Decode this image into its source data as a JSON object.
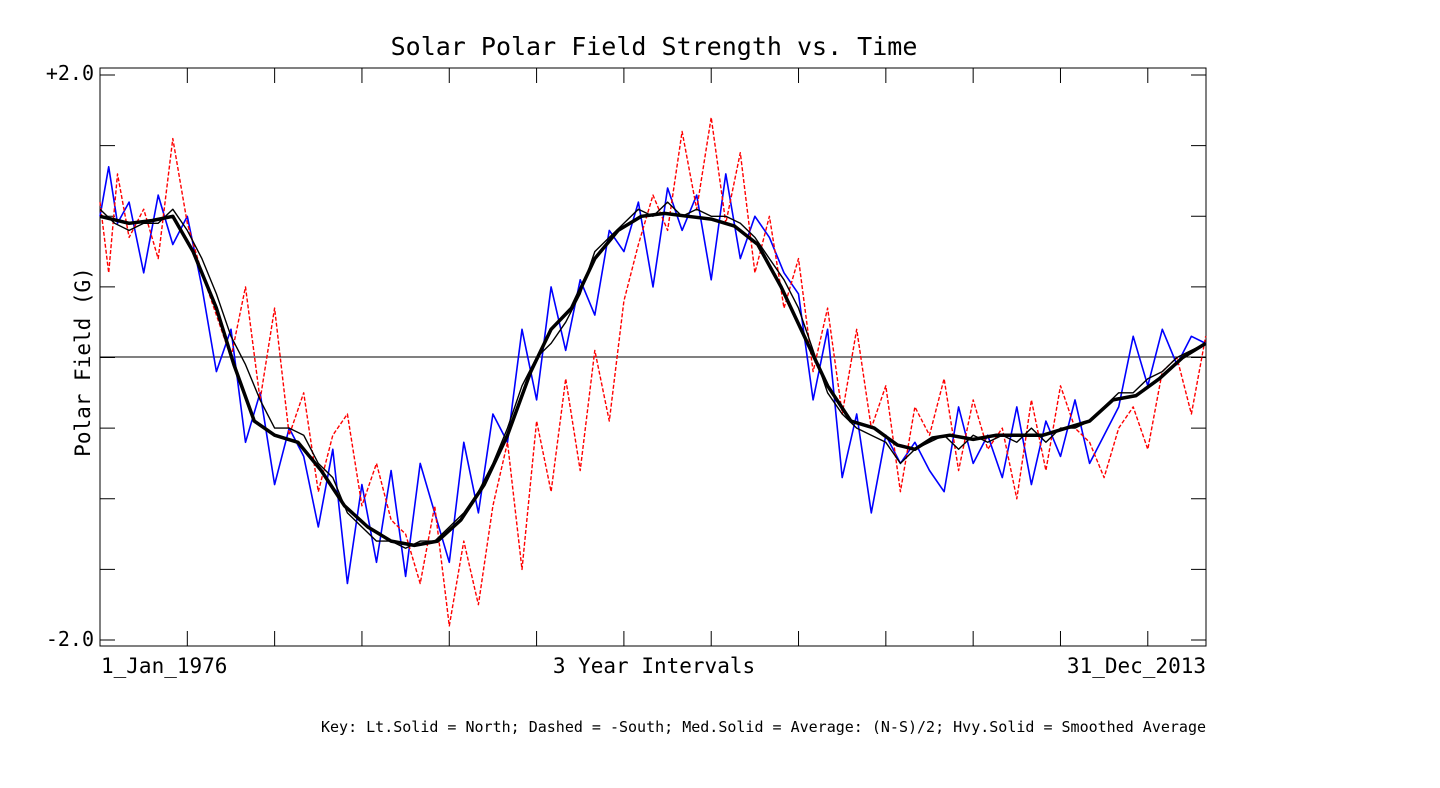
{
  "chart_data": {
    "type": "line",
    "title": "Solar Polar Field Strength vs. Time",
    "ylabel": "Polar Field (G)",
    "xlabel": "3 Year Intervals",
    "x_start_label": "1_Jan_1976",
    "x_end_label": "31_Dec_2013",
    "x_range": [
      "1976-01-01",
      "2013-12-31"
    ],
    "ylim": [
      -2.0,
      2.0
    ],
    "y_tick_labels": [
      "+2.0",
      "-2.0"
    ],
    "zero_line": true,
    "grid": false,
    "key": "Key: Lt.Solid = North; Dashed = -South; Med.Solid = Average: (N-S)/2; Hvy.Solid = Smoothed Average",
    "series": [
      {
        "name": "North",
        "style": "light-solid",
        "color": "#0000ff",
        "x": [
          1976.0,
          1976.3,
          1976.6,
          1977.0,
          1977.5,
          1978.0,
          1978.5,
          1979.0,
          1979.5,
          1980.0,
          1980.5,
          1981.0,
          1981.5,
          1982.0,
          1982.5,
          1983.0,
          1983.5,
          1984.0,
          1984.5,
          1985.0,
          1985.5,
          1986.0,
          1986.5,
          1987.0,
          1987.5,
          1988.0,
          1988.5,
          1989.0,
          1989.5,
          1990.0,
          1990.5,
          1991.0,
          1991.5,
          1992.0,
          1992.5,
          1993.0,
          1993.5,
          1994.0,
          1994.5,
          1995.0,
          1995.5,
          1996.0,
          1996.5,
          1997.0,
          1997.5,
          1998.0,
          1998.5,
          1999.0,
          1999.5,
          2000.0,
          2000.5,
          2001.0,
          2001.5,
          2002.0,
          2002.5,
          2003.0,
          2003.5,
          2004.0,
          2004.5,
          2005.0,
          2005.5,
          2006.0,
          2006.5,
          2007.0,
          2007.5,
          2008.0,
          2008.5,
          2009.0,
          2009.5,
          2010.0,
          2010.5,
          2011.0,
          2011.5,
          2012.0,
          2012.5,
          2013.0,
          2013.5,
          2013.99
        ],
        "y": [
          1.0,
          1.35,
          0.95,
          1.1,
          0.6,
          1.15,
          0.8,
          1.0,
          0.5,
          -0.1,
          0.2,
          -0.6,
          -0.25,
          -0.9,
          -0.5,
          -0.7,
          -1.2,
          -0.65,
          -1.6,
          -0.9,
          -1.45,
          -0.8,
          -1.55,
          -0.75,
          -1.1,
          -1.45,
          -0.6,
          -1.1,
          -0.4,
          -0.6,
          0.2,
          -0.3,
          0.5,
          0.05,
          0.55,
          0.3,
          0.9,
          0.75,
          1.1,
          0.5,
          1.2,
          0.9,
          1.15,
          0.55,
          1.3,
          0.7,
          1.0,
          0.85,
          0.6,
          0.45,
          -0.3,
          0.2,
          -0.85,
          -0.4,
          -1.1,
          -0.55,
          -0.75,
          -0.6,
          -0.8,
          -0.95,
          -0.35,
          -0.75,
          -0.55,
          -0.85,
          -0.35,
          -0.9,
          -0.45,
          -0.7,
          -0.3,
          -0.75,
          -0.55,
          -0.35,
          0.15,
          -0.2,
          0.2,
          -0.05,
          0.15,
          0.1
        ]
      },
      {
        "name": "-South",
        "style": "dashed",
        "color": "#ff0000",
        "x": [
          1976.0,
          1976.3,
          1976.6,
          1977.0,
          1977.5,
          1978.0,
          1978.5,
          1979.0,
          1979.5,
          1980.0,
          1980.5,
          1981.0,
          1981.5,
          1982.0,
          1982.5,
          1983.0,
          1983.5,
          1984.0,
          1984.5,
          1985.0,
          1985.5,
          1986.0,
          1986.5,
          1987.0,
          1987.5,
          1988.0,
          1988.5,
          1989.0,
          1989.5,
          1990.0,
          1990.5,
          1991.0,
          1991.5,
          1992.0,
          1992.5,
          1993.0,
          1993.5,
          1994.0,
          1994.5,
          1995.0,
          1995.5,
          1996.0,
          1996.5,
          1997.0,
          1997.5,
          1998.0,
          1998.5,
          1999.0,
          1999.5,
          2000.0,
          2000.5,
          2001.0,
          2001.5,
          2002.0,
          2002.5,
          2003.0,
          2003.5,
          2004.0,
          2004.5,
          2005.0,
          2005.5,
          2006.0,
          2006.5,
          2007.0,
          2007.5,
          2008.0,
          2008.5,
          2009.0,
          2009.5,
          2010.0,
          2010.5,
          2011.0,
          2011.5,
          2012.0,
          2012.5,
          2013.0,
          2013.5,
          2013.99
        ],
        "y": [
          1.1,
          0.6,
          1.3,
          0.85,
          1.05,
          0.7,
          1.55,
          0.95,
          0.6,
          0.3,
          0.0,
          0.5,
          -0.3,
          0.35,
          -0.55,
          -0.25,
          -0.95,
          -0.55,
          -0.4,
          -1.05,
          -0.75,
          -1.15,
          -1.25,
          -1.6,
          -1.05,
          -1.9,
          -1.3,
          -1.75,
          -1.05,
          -0.6,
          -1.5,
          -0.45,
          -0.95,
          -0.15,
          -0.8,
          0.05,
          -0.45,
          0.4,
          0.8,
          1.15,
          0.9,
          1.6,
          1.05,
          1.7,
          0.95,
          1.45,
          0.6,
          1.0,
          0.35,
          0.7,
          -0.1,
          0.35,
          -0.4,
          0.2,
          -0.5,
          -0.2,
          -0.95,
          -0.35,
          -0.55,
          -0.15,
          -0.8,
          -0.3,
          -0.65,
          -0.5,
          -1.0,
          -0.3,
          -0.8,
          -0.2,
          -0.5,
          -0.6,
          -0.85,
          -0.5,
          -0.35,
          -0.65,
          -0.1,
          0.0,
          -0.4,
          0.15
        ]
      },
      {
        "name": "Average: (N-S)/2",
        "style": "medium-solid",
        "color": "#000000",
        "x": [
          1976.0,
          1976.5,
          1977.0,
          1977.5,
          1978.0,
          1978.5,
          1979.0,
          1979.5,
          1980.0,
          1980.5,
          1981.0,
          1981.5,
          1982.0,
          1982.5,
          1983.0,
          1983.5,
          1984.0,
          1984.5,
          1985.0,
          1985.5,
          1986.0,
          1986.5,
          1987.0,
          1987.5,
          1988.0,
          1988.5,
          1989.0,
          1989.5,
          1990.0,
          1990.5,
          1991.0,
          1991.5,
          1992.0,
          1992.5,
          1993.0,
          1993.5,
          1994.0,
          1994.5,
          1995.0,
          1995.5,
          1996.0,
          1996.5,
          1997.0,
          1997.5,
          1998.0,
          1998.5,
          1999.0,
          1999.5,
          2000.0,
          2000.5,
          2001.0,
          2001.5,
          2002.0,
          2002.5,
          2003.0,
          2003.5,
          2004.0,
          2004.5,
          2005.0,
          2005.5,
          2006.0,
          2006.5,
          2007.0,
          2007.5,
          2008.0,
          2008.5,
          2009.0,
          2009.5,
          2010.0,
          2010.5,
          2011.0,
          2011.5,
          2012.0,
          2012.5,
          2013.0,
          2013.5,
          2013.99
        ],
        "y": [
          1.05,
          0.95,
          0.9,
          0.95,
          0.95,
          1.05,
          0.9,
          0.7,
          0.45,
          0.15,
          -0.05,
          -0.3,
          -0.5,
          -0.5,
          -0.55,
          -0.75,
          -0.85,
          -1.1,
          -1.2,
          -1.3,
          -1.3,
          -1.35,
          -1.3,
          -1.3,
          -1.2,
          -1.1,
          -0.95,
          -0.75,
          -0.5,
          -0.2,
          0.0,
          0.1,
          0.25,
          0.45,
          0.75,
          0.85,
          0.95,
          1.05,
          1.0,
          1.1,
          1.0,
          1.05,
          1.0,
          1.0,
          0.95,
          0.85,
          0.7,
          0.55,
          0.35,
          0.05,
          -0.25,
          -0.4,
          -0.5,
          -0.55,
          -0.6,
          -0.75,
          -0.65,
          -0.6,
          -0.55,
          -0.65,
          -0.55,
          -0.6,
          -0.55,
          -0.6,
          -0.5,
          -0.6,
          -0.5,
          -0.5,
          -0.45,
          -0.35,
          -0.25,
          -0.25,
          -0.15,
          -0.1,
          0.0,
          0.05,
          0.1
        ]
      },
      {
        "name": "Smoothed Average",
        "style": "heavy-solid",
        "color": "#000000",
        "x": [
          1976.0,
          1977.0,
          1977.8,
          1978.5,
          1979.2,
          1980.0,
          1980.6,
          1981.3,
          1982.0,
          1982.8,
          1983.6,
          1984.4,
          1985.2,
          1986.0,
          1986.8,
          1987.6,
          1988.4,
          1989.2,
          1990.0,
          1990.8,
          1991.5,
          1992.2,
          1993.0,
          1993.8,
          1994.6,
          1995.4,
          1996.2,
          1997.0,
          1997.8,
          1998.6,
          1999.4,
          2000.2,
          2001.0,
          2001.8,
          2002.6,
          2003.4,
          2004.0,
          2004.6,
          2005.2,
          2006.0,
          2006.8,
          2007.6,
          2008.4,
          2009.2,
          2010.0,
          2010.8,
          2011.6,
          2012.4,
          2013.2,
          2013.99
        ],
        "y": [
          1.0,
          0.95,
          0.97,
          1.0,
          0.75,
          0.35,
          -0.05,
          -0.45,
          -0.55,
          -0.6,
          -0.8,
          -1.05,
          -1.2,
          -1.3,
          -1.33,
          -1.3,
          -1.15,
          -0.9,
          -0.55,
          -0.1,
          0.2,
          0.35,
          0.7,
          0.9,
          1.0,
          1.02,
          1.0,
          0.98,
          0.93,
          0.8,
          0.5,
          0.15,
          -0.2,
          -0.45,
          -0.5,
          -0.62,
          -0.65,
          -0.57,
          -0.55,
          -0.58,
          -0.55,
          -0.55,
          -0.55,
          -0.5,
          -0.45,
          -0.3,
          -0.27,
          -0.15,
          0.0,
          0.1
        ]
      }
    ]
  }
}
